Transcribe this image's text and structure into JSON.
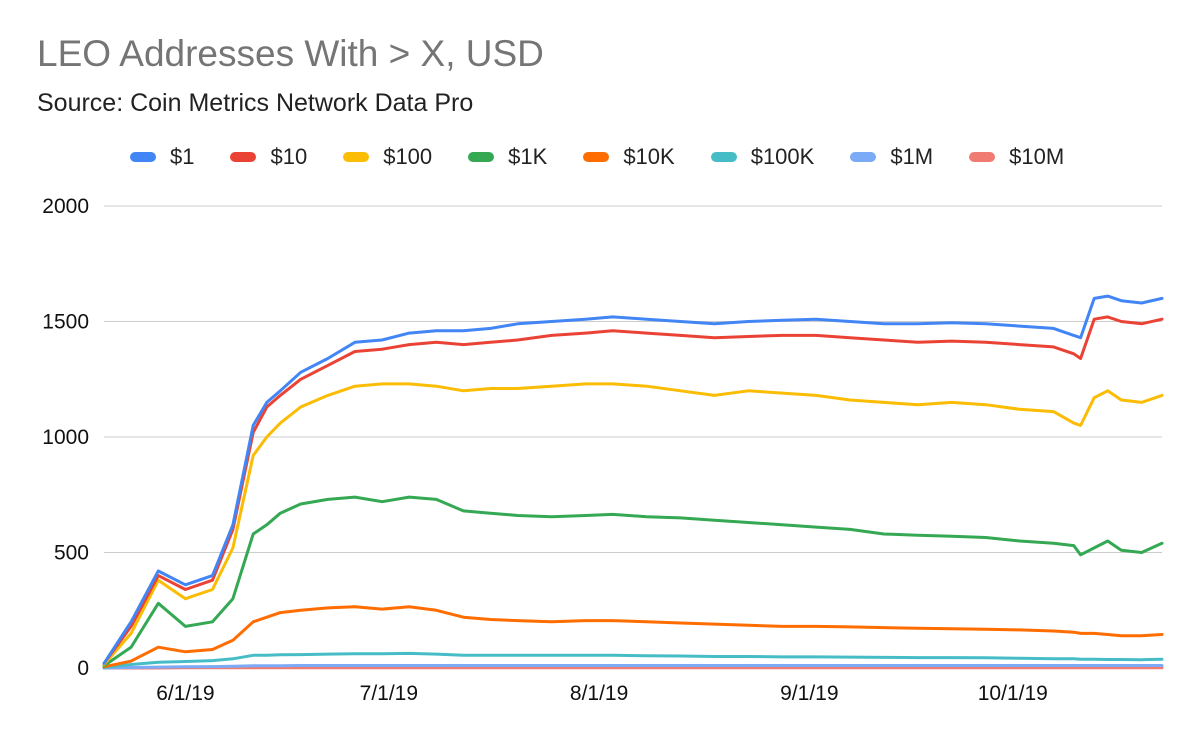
{
  "chart_data": {
    "type": "line",
    "title": "LEO Addresses With > X, USD",
    "subtitle": "Source: Coin Metrics Network Data Pro",
    "xlabel": "",
    "ylabel": "",
    "ylim": [
      0,
      2000
    ],
    "y_ticks": [
      "0",
      "500",
      "1000",
      "1500",
      "2000"
    ],
    "x_ticks": [
      "6/1/19",
      "7/1/19",
      "8/1/19",
      "9/1/19",
      "10/1/19"
    ],
    "xlim": [
      "2019-05-20",
      "2019-10-23"
    ],
    "grid": true,
    "legend_position": "top",
    "x": [
      "2019-05-20",
      "2019-05-24",
      "2019-05-28",
      "2019-06-01",
      "2019-06-05",
      "2019-06-08",
      "2019-06-11",
      "2019-06-13",
      "2019-06-15",
      "2019-06-18",
      "2019-06-22",
      "2019-06-26",
      "2019-06-30",
      "2019-07-04",
      "2019-07-08",
      "2019-07-12",
      "2019-07-16",
      "2019-07-20",
      "2019-07-25",
      "2019-07-30",
      "2019-08-03",
      "2019-08-08",
      "2019-08-13",
      "2019-08-18",
      "2019-08-23",
      "2019-08-28",
      "2019-09-02",
      "2019-09-07",
      "2019-09-12",
      "2019-09-17",
      "2019-09-22",
      "2019-09-27",
      "2019-10-02",
      "2019-10-07",
      "2019-10-10",
      "2019-10-11",
      "2019-10-13",
      "2019-10-15",
      "2019-10-17",
      "2019-10-20",
      "2019-10-23"
    ],
    "series": [
      {
        "name": "$1",
        "color": "#4285f4",
        "values": [
          20,
          200,
          420,
          360,
          400,
          620,
          1050,
          1150,
          1200,
          1280,
          1340,
          1410,
          1420,
          1450,
          1460,
          1460,
          1470,
          1490,
          1500,
          1510,
          1520,
          1510,
          1500,
          1490,
          1500,
          1505,
          1510,
          1500,
          1490,
          1490,
          1495,
          1490,
          1480,
          1470,
          1440,
          1430,
          1600,
          1610,
          1590,
          1580,
          1600
        ]
      },
      {
        "name": "$10",
        "color": "#ea4335",
        "values": [
          20,
          180,
          400,
          340,
          380,
          600,
          1020,
          1130,
          1180,
          1250,
          1310,
          1370,
          1380,
          1400,
          1410,
          1400,
          1410,
          1420,
          1440,
          1450,
          1460,
          1450,
          1440,
          1430,
          1435,
          1440,
          1440,
          1430,
          1420,
          1410,
          1415,
          1410,
          1400,
          1390,
          1360,
          1340,
          1510,
          1520,
          1500,
          1490,
          1510
        ]
      },
      {
        "name": "$100",
        "color": "#fbbc04",
        "values": [
          15,
          150,
          380,
          300,
          340,
          520,
          920,
          1000,
          1060,
          1130,
          1180,
          1220,
          1230,
          1230,
          1220,
          1200,
          1210,
          1210,
          1220,
          1230,
          1230,
          1220,
          1200,
          1180,
          1200,
          1190,
          1180,
          1160,
          1150,
          1140,
          1150,
          1140,
          1120,
          1110,
          1060,
          1050,
          1170,
          1200,
          1160,
          1150,
          1180
        ]
      },
      {
        "name": "$1K",
        "color": "#34a853",
        "values": [
          10,
          90,
          280,
          180,
          200,
          300,
          580,
          620,
          670,
          710,
          730,
          740,
          720,
          740,
          730,
          680,
          670,
          660,
          655,
          660,
          665,
          655,
          650,
          640,
          630,
          620,
          610,
          600,
          580,
          575,
          570,
          565,
          550,
          540,
          530,
          490,
          520,
          550,
          510,
          500,
          540
        ]
      },
      {
        "name": "$10K",
        "color": "#ff6d01",
        "values": [
          5,
          30,
          90,
          70,
          80,
          120,
          200,
          220,
          240,
          250,
          260,
          265,
          255,
          265,
          250,
          220,
          210,
          205,
          200,
          205,
          205,
          200,
          195,
          190,
          185,
          180,
          180,
          178,
          175,
          172,
          170,
          168,
          165,
          160,
          155,
          150,
          150,
          145,
          140,
          140,
          145
        ]
      },
      {
        "name": "$100K",
        "color": "#46bdc6",
        "values": [
          2,
          15,
          25,
          28,
          32,
          40,
          55,
          55,
          57,
          58,
          60,
          62,
          62,
          63,
          60,
          55,
          55,
          55,
          55,
          55,
          55,
          53,
          52,
          50,
          50,
          48,
          48,
          47,
          46,
          45,
          45,
          44,
          42,
          40,
          40,
          38,
          38,
          37,
          37,
          36,
          38
        ]
      },
      {
        "name": "$1M",
        "color": "#7baaf7",
        "values": [
          0,
          2,
          4,
          5,
          6,
          8,
          10,
          10,
          10,
          11,
          11,
          11,
          11,
          11,
          11,
          11,
          11,
          11,
          11,
          11,
          11,
          11,
          11,
          11,
          11,
          11,
          11,
          11,
          11,
          11,
          11,
          11,
          11,
          11,
          11,
          11,
          11,
          11,
          11,
          11,
          11
        ]
      },
      {
        "name": "$10M",
        "color": "#f07b72",
        "values": [
          0,
          0,
          0,
          1,
          1,
          1,
          1,
          1,
          1,
          1,
          1,
          1,
          1,
          1,
          1,
          1,
          1,
          1,
          1,
          1,
          1,
          1,
          1,
          1,
          1,
          1,
          1,
          1,
          1,
          1,
          1,
          1,
          1,
          1,
          1,
          1,
          1,
          1,
          1,
          1,
          1
        ]
      }
    ]
  }
}
